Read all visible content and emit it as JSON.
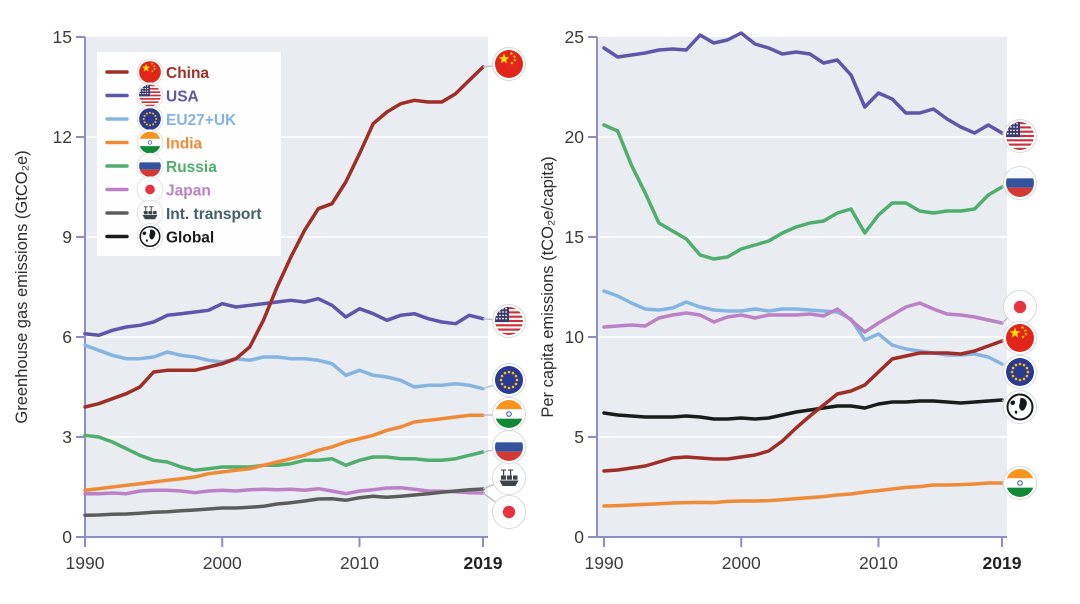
{
  "figure": {
    "colors": {
      "plot_bg": "#e9edf2",
      "gridline": "#fafbfd",
      "axis": "#8d8ec6",
      "tick_text": "#3c3c3c",
      "tick_text_bold": "#222222",
      "axis_title": "#2c2c2c",
      "legend_bg": "#fefefe",
      "connector": "#b9bdc9",
      "flag_ring": "#d6dade"
    },
    "legend": {
      "items": [
        {
          "id": "china",
          "label": "China",
          "color": "#9f2f26",
          "flag": "china"
        },
        {
          "id": "usa",
          "label": "USA",
          "color": "#5e56aa",
          "flag": "usa"
        },
        {
          "id": "eu",
          "label": "EU27+UK",
          "color": "#84b5e2",
          "flag": "eu"
        },
        {
          "id": "india",
          "label": "India",
          "color": "#ef8a36",
          "flag": "india"
        },
        {
          "id": "russia",
          "label": "Russia",
          "color": "#4fae6b",
          "flag": "russia"
        },
        {
          "id": "japan",
          "label": "Japan",
          "color": "#bc80c6",
          "flag": "japan"
        },
        {
          "id": "transport",
          "label": "Int. transport",
          "color": "#5c5c5c",
          "text_color": "#41606f",
          "flag": "ship"
        },
        {
          "id": "global",
          "label": "Global",
          "color": "#1b1b1b",
          "flag": "globe"
        }
      ]
    }
  },
  "chart_data": [
    {
      "type": "line",
      "ylabel": "Greenhouse gas emissions (GtCO₂e)",
      "ylim": [
        0,
        15
      ],
      "y_ticks": [
        0,
        3,
        6,
        9,
        12,
        15
      ],
      "x_ticks": [
        {
          "label": "1990",
          "year": 1990,
          "bold": false
        },
        {
          "label": "2000",
          "year": 2000,
          "bold": false
        },
        {
          "label": "2010",
          "year": 2010,
          "bold": false
        },
        {
          "label": "2019",
          "year": 2019,
          "bold": true
        }
      ],
      "x": [
        1990,
        1991,
        1992,
        1993,
        1994,
        1995,
        1996,
        1997,
        1998,
        1999,
        2000,
        2001,
        2002,
        2003,
        2004,
        2005,
        2006,
        2007,
        2008,
        2009,
        2010,
        2011,
        2012,
        2013,
        2014,
        2015,
        2016,
        2017,
        2018,
        2019
      ],
      "series": [
        {
          "id": "japan",
          "name": "Japan",
          "values": [
            1.3,
            1.3,
            1.32,
            1.3,
            1.38,
            1.4,
            1.4,
            1.38,
            1.33,
            1.38,
            1.4,
            1.38,
            1.42,
            1.43,
            1.42,
            1.43,
            1.4,
            1.45,
            1.38,
            1.3,
            1.38,
            1.42,
            1.47,
            1.48,
            1.43,
            1.38,
            1.37,
            1.36,
            1.33,
            1.32
          ]
        },
        {
          "id": "transport",
          "name": "Int. transport",
          "values": [
            0.65,
            0.66,
            0.68,
            0.69,
            0.71,
            0.74,
            0.76,
            0.79,
            0.81,
            0.84,
            0.87,
            0.87,
            0.89,
            0.92,
            0.99,
            1.03,
            1.08,
            1.14,
            1.15,
            1.1,
            1.18,
            1.22,
            1.19,
            1.22,
            1.26,
            1.3,
            1.34,
            1.38,
            1.42,
            1.44
          ]
        },
        {
          "id": "russia",
          "name": "Russia",
          "values": [
            3.05,
            3.0,
            2.85,
            2.65,
            2.45,
            2.3,
            2.25,
            2.1,
            2.0,
            2.05,
            2.1,
            2.1,
            2.1,
            2.15,
            2.15,
            2.2,
            2.3,
            2.3,
            2.35,
            2.15,
            2.3,
            2.4,
            2.4,
            2.35,
            2.35,
            2.3,
            2.3,
            2.35,
            2.45,
            2.55
          ]
        },
        {
          "id": "india",
          "name": "India",
          "values": [
            1.4,
            1.45,
            1.5,
            1.55,
            1.6,
            1.65,
            1.7,
            1.75,
            1.8,
            1.9,
            1.95,
            2.0,
            2.05,
            2.15,
            2.25,
            2.35,
            2.45,
            2.6,
            2.7,
            2.85,
            2.95,
            3.05,
            3.2,
            3.3,
            3.45,
            3.5,
            3.55,
            3.6,
            3.65,
            3.65
          ]
        },
        {
          "id": "eu",
          "name": "EU27+UK",
          "values": [
            5.75,
            5.6,
            5.45,
            5.35,
            5.35,
            5.4,
            5.55,
            5.45,
            5.4,
            5.3,
            5.25,
            5.35,
            5.3,
            5.4,
            5.4,
            5.35,
            5.35,
            5.3,
            5.2,
            4.85,
            5.0,
            4.85,
            4.8,
            4.7,
            4.5,
            4.55,
            4.55,
            4.6,
            4.55,
            4.45
          ]
        },
        {
          "id": "usa",
          "name": "USA",
          "values": [
            6.1,
            6.05,
            6.2,
            6.3,
            6.35,
            6.45,
            6.65,
            6.7,
            6.75,
            6.8,
            7.0,
            6.9,
            6.95,
            7.0,
            7.05,
            7.1,
            7.05,
            7.15,
            6.95,
            6.6,
            6.85,
            6.7,
            6.5,
            6.65,
            6.7,
            6.55,
            6.45,
            6.4,
            6.65,
            6.55
          ]
        },
        {
          "id": "china",
          "name": "China",
          "values": [
            3.9,
            4.0,
            4.15,
            4.3,
            4.5,
            4.95,
            5.0,
            5.0,
            5.0,
            5.1,
            5.2,
            5.35,
            5.7,
            6.5,
            7.5,
            8.4,
            9.2,
            9.85,
            10.0,
            10.65,
            11.5,
            12.4,
            12.75,
            13.0,
            13.1,
            13.05,
            13.05,
            13.3,
            13.7,
            14.1
          ]
        }
      ]
    },
    {
      "type": "line",
      "ylabel": "Per capita emissions (tCO₂e/capita)",
      "ylim": [
        0,
        25
      ],
      "y_ticks": [
        0,
        5,
        10,
        15,
        20,
        25
      ],
      "x_ticks": [
        {
          "label": "1990",
          "year": 1990,
          "bold": false
        },
        {
          "label": "2000",
          "year": 2000,
          "bold": false
        },
        {
          "label": "2010",
          "year": 2010,
          "bold": false
        },
        {
          "label": "2019",
          "year": 2019,
          "bold": true
        }
      ],
      "x": [
        1990,
        1991,
        1992,
        1993,
        1994,
        1995,
        1996,
        1997,
        1998,
        1999,
        2000,
        2001,
        2002,
        2003,
        2004,
        2005,
        2006,
        2007,
        2008,
        2009,
        2010,
        2011,
        2012,
        2013,
        2014,
        2015,
        2016,
        2017,
        2018,
        2019
      ],
      "series": [
        {
          "id": "eu",
          "name": "EU27+UK",
          "values": [
            12.3,
            12.05,
            11.7,
            11.4,
            11.35,
            11.45,
            11.75,
            11.5,
            11.35,
            11.3,
            11.3,
            11.4,
            11.3,
            11.4,
            11.4,
            11.35,
            11.3,
            11.25,
            10.9,
            9.85,
            10.15,
            9.6,
            9.4,
            9.3,
            9.2,
            9.1,
            9.1,
            9.15,
            9.0,
            8.65
          ]
        },
        {
          "id": "india",
          "name": "India",
          "values": [
            1.55,
            1.57,
            1.6,
            1.63,
            1.66,
            1.7,
            1.72,
            1.73,
            1.72,
            1.78,
            1.8,
            1.8,
            1.82,
            1.86,
            1.92,
            1.97,
            2.02,
            2.1,
            2.15,
            2.25,
            2.32,
            2.4,
            2.48,
            2.52,
            2.6,
            2.6,
            2.62,
            2.65,
            2.7,
            2.7
          ]
        },
        {
          "id": "russia",
          "name": "Russia",
          "values": [
            20.6,
            20.3,
            18.6,
            17.2,
            15.7,
            15.3,
            14.9,
            14.1,
            13.9,
            14.0,
            14.4,
            14.6,
            14.8,
            15.2,
            15.5,
            15.7,
            15.8,
            16.2,
            16.4,
            15.2,
            16.1,
            16.7,
            16.7,
            16.3,
            16.2,
            16.3,
            16.3,
            16.4,
            17.1,
            17.5
          ]
        },
        {
          "id": "japan",
          "name": "Japan",
          "values": [
            10.5,
            10.55,
            10.6,
            10.55,
            10.95,
            11.1,
            11.2,
            11.1,
            10.75,
            11.0,
            11.1,
            10.95,
            11.1,
            11.1,
            11.1,
            11.15,
            11.05,
            11.4,
            10.85,
            10.25,
            10.7,
            11.1,
            11.5,
            11.7,
            11.4,
            11.15,
            11.1,
            11.0,
            10.85,
            10.7
          ]
        },
        {
          "id": "usa",
          "name": "USA",
          "values": [
            24.45,
            24.0,
            24.1,
            24.2,
            24.35,
            24.4,
            24.35,
            25.1,
            24.7,
            24.85,
            25.2,
            24.65,
            24.45,
            24.15,
            24.25,
            24.15,
            23.7,
            23.85,
            23.1,
            21.5,
            22.2,
            21.9,
            21.2,
            21.2,
            21.4,
            20.9,
            20.5,
            20.2,
            20.6,
            20.2
          ]
        },
        {
          "id": "global",
          "name": "Global",
          "values": [
            6.2,
            6.1,
            6.05,
            6.0,
            6.0,
            6.0,
            6.05,
            6.0,
            5.9,
            5.9,
            5.95,
            5.9,
            5.95,
            6.1,
            6.25,
            6.35,
            6.45,
            6.55,
            6.55,
            6.45,
            6.65,
            6.75,
            6.75,
            6.8,
            6.8,
            6.75,
            6.7,
            6.75,
            6.8,
            6.85
          ]
        },
        {
          "id": "china",
          "name": "China",
          "values": [
            3.3,
            3.35,
            3.45,
            3.55,
            3.75,
            3.95,
            4.0,
            3.95,
            3.9,
            3.9,
            4.0,
            4.1,
            4.3,
            4.8,
            5.45,
            6.05,
            6.6,
            7.15,
            7.3,
            7.6,
            8.25,
            8.9,
            9.05,
            9.2,
            9.2,
            9.2,
            9.15,
            9.3,
            9.55,
            9.8
          ]
        }
      ]
    }
  ]
}
